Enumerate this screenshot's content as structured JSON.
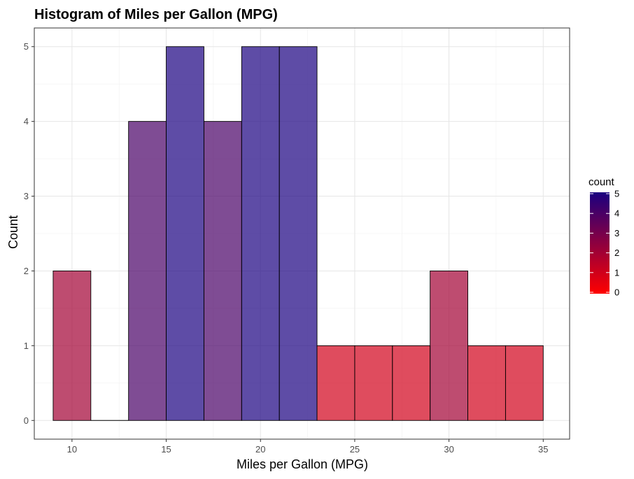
{
  "chart_data": {
    "type": "bar",
    "title": "Histogram of Miles per Gallon (MPG)",
    "xlabel": "Miles per Gallon (MPG)",
    "ylabel": "Count",
    "xlim": [
      8,
      36.4
    ],
    "ylim": [
      -0.25,
      5.25
    ],
    "x_ticks": [
      10,
      15,
      20,
      25,
      30,
      35
    ],
    "y_ticks": [
      0,
      1,
      2,
      3,
      4,
      5
    ],
    "grid": true,
    "bins": [
      {
        "x0": 9,
        "x1": 11,
        "count": 2
      },
      {
        "x0": 11,
        "x1": 13,
        "count": 0
      },
      {
        "x0": 13,
        "x1": 15,
        "count": 4
      },
      {
        "x0": 15,
        "x1": 17,
        "count": 5
      },
      {
        "x0": 17,
        "x1": 19,
        "count": 4
      },
      {
        "x0": 19,
        "x1": 21,
        "count": 5
      },
      {
        "x0": 21,
        "x1": 23,
        "count": 5
      },
      {
        "x0": 23,
        "x1": 25,
        "count": 1
      },
      {
        "x0": 25,
        "x1": 27,
        "count": 1
      },
      {
        "x0": 27,
        "x1": 29,
        "count": 1
      },
      {
        "x0": 29,
        "x1": 31,
        "count": 2
      },
      {
        "x0": 31,
        "x1": 33,
        "count": 1
      },
      {
        "x0": 33,
        "x1": 35,
        "count": 1
      }
    ],
    "legend": {
      "title": "count",
      "placement": "right",
      "ticks": [
        0,
        1,
        2,
        3,
        4,
        5
      ],
      "low_color": "#ff0000",
      "high_color": "#1a0080"
    },
    "bar_opacity": 0.7,
    "bar_outline": "#000000"
  }
}
